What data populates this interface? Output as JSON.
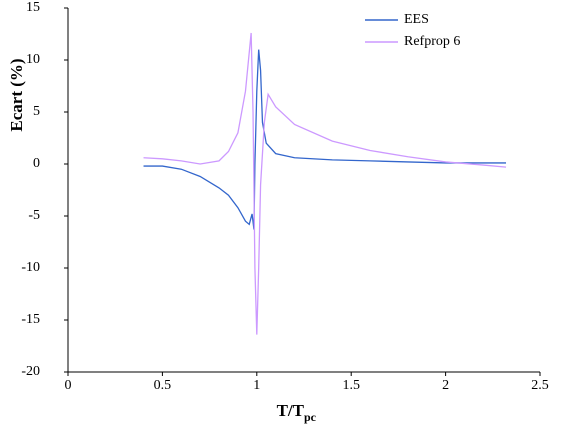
{
  "chart_data": {
    "type": "line",
    "y_label": "Ecart (%)",
    "x_label": "T/T",
    "x_label_subscript": "pc",
    "xlim": [
      0,
      2.5
    ],
    "xticks": [
      0,
      0.5,
      1,
      1.5,
      2,
      2.5
    ],
    "ylim": [
      -20,
      15
    ],
    "yticks": [
      15,
      10,
      5,
      0,
      -5,
      -10,
      -15,
      -20
    ],
    "grid": false,
    "legend": "upper right",
    "series": [
      {
        "name": "EES",
        "color": "#3366cc",
        "x": [
          0.4,
          0.5,
          0.6,
          0.7,
          0.8,
          0.85,
          0.9,
          0.94,
          0.96,
          0.975,
          0.985,
          0.99,
          1.0,
          1.01,
          1.02,
          1.03,
          1.05,
          1.1,
          1.2,
          1.4,
          1.6,
          1.8,
          2.0,
          2.32
        ],
        "values": [
          -0.2,
          -0.2,
          -0.5,
          -1.2,
          -2.3,
          -3,
          -4.2,
          -5.5,
          -5.8,
          -4.8,
          -6.3,
          0,
          7,
          11,
          9,
          4,
          2,
          1,
          0.6,
          0.4,
          0.3,
          0.2,
          0.1,
          0.1
        ]
      },
      {
        "name": "Refprop 6",
        "color": "#cc99ff",
        "x": [
          0.4,
          0.5,
          0.6,
          0.7,
          0.8,
          0.85,
          0.9,
          0.94,
          0.97,
          0.98,
          0.99,
          1.0,
          1.01,
          1.02,
          1.04,
          1.06,
          1.1,
          1.2,
          1.4,
          1.6,
          1.8,
          2.0,
          2.2,
          2.32
        ],
        "values": [
          0.6,
          0.5,
          0.3,
          0,
          0.3,
          1.2,
          3,
          7,
          12.6,
          5,
          -10,
          -16.4,
          -10,
          -2,
          4,
          6.7,
          5.5,
          3.8,
          2.2,
          1.3,
          0.7,
          0.2,
          -0.1,
          -0.3
        ]
      }
    ]
  }
}
